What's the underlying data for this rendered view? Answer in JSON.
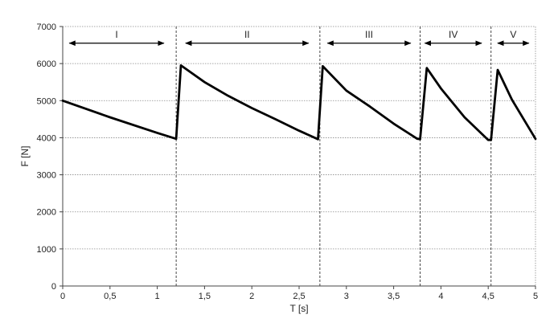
{
  "chart_data": {
    "type": "line",
    "xlabel": "T [s]",
    "ylabel": "F [N]",
    "xlim": [
      0,
      5
    ],
    "ylim": [
      0,
      7000
    ],
    "grid": true,
    "x_ticks": [
      0,
      0.5,
      1,
      1.5,
      2,
      2.5,
      3,
      3.5,
      4,
      4.5,
      5
    ],
    "x_tick_labels": [
      "0",
      "0,5",
      "1",
      "1,5",
      "2",
      "2,5",
      "3",
      "3,5",
      "4",
      "4,5",
      "5"
    ],
    "y_ticks": [
      0,
      1000,
      2000,
      3000,
      4000,
      5000,
      6000,
      7000
    ],
    "y_tick_labels": [
      "0",
      "1000",
      "2000",
      "3000",
      "4000",
      "5000",
      "6000",
      "7000"
    ],
    "series": [
      {
        "x": [
          0,
          0.5,
          1.0,
          1.2,
          1.25,
          1.5,
          1.75,
          2.0,
          2.25,
          2.5,
          2.7,
          2.75,
          3.0,
          3.25,
          3.5,
          3.75,
          3.78,
          3.85,
          4.0,
          4.25,
          4.5,
          4.53,
          4.6,
          4.75,
          5.0
        ],
        "y": [
          5000,
          4550,
          4130,
          3970,
          5950,
          5500,
          5130,
          4800,
          4500,
          4190,
          3960,
          5930,
          5270,
          4840,
          4380,
          3970,
          3960,
          5880,
          5330,
          4550,
          3940,
          3940,
          5830,
          5030,
          3970
        ]
      }
    ],
    "segment_boundaries": [
      1.2,
      2.72,
      3.78,
      4.53
    ],
    "segments": [
      {
        "label": "I",
        "x_start": 0.07,
        "x_end": 1.07
      },
      {
        "label": "II",
        "x_start": 1.3,
        "x_end": 2.6
      },
      {
        "label": "III",
        "x_start": 2.8,
        "x_end": 3.68
      },
      {
        "label": "IV",
        "x_start": 3.83,
        "x_end": 4.43
      },
      {
        "label": "V",
        "x_start": 4.6,
        "x_end": 4.93
      }
    ]
  }
}
